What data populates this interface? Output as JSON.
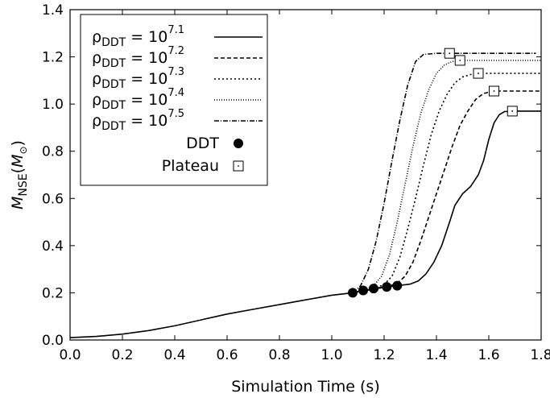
{
  "chart_data": {
    "type": "line",
    "xlabel": "Simulation Time (s)",
    "ylabel_main": "M",
    "ylabel_sub": "NSE",
    "ylabel_unit_open": "(",
    "ylabel_unit": "M",
    "ylabel_unit_close": ")",
    "xlim": [
      0.0,
      1.8
    ],
    "ylim": [
      0.0,
      1.4
    ],
    "xticks": [
      "0.0",
      "0.2",
      "0.4",
      "0.6",
      "0.8",
      "1.0",
      "1.2",
      "1.4",
      "1.6",
      "1.8"
    ],
    "yticks": [
      "0.0",
      "0.2",
      "0.4",
      "0.6",
      "0.8",
      "1.0",
      "1.2",
      "1.4"
    ],
    "grid": false,
    "legend_position": "top-left",
    "common_curve": [
      [
        0.0,
        0.01
      ],
      [
        0.1,
        0.015
      ],
      [
        0.2,
        0.025
      ],
      [
        0.3,
        0.04
      ],
      [
        0.4,
        0.06
      ],
      [
        0.5,
        0.085
      ],
      [
        0.6,
        0.11
      ],
      [
        0.7,
        0.13
      ],
      [
        0.8,
        0.15
      ],
      [
        0.9,
        0.17
      ],
      [
        1.0,
        0.19
      ],
      [
        1.08,
        0.2
      ]
    ],
    "series": [
      {
        "name_base": "ρ",
        "name_sub": "DDT",
        "name_eq": " = 10",
        "name_exp": "7.1",
        "dash": "",
        "points": [
          [
            1.08,
            0.2
          ],
          [
            1.12,
            0.21
          ],
          [
            1.16,
            0.218
          ],
          [
            1.2,
            0.225
          ],
          [
            1.25,
            0.23
          ],
          [
            1.3,
            0.237
          ],
          [
            1.33,
            0.25
          ],
          [
            1.36,
            0.28
          ],
          [
            1.39,
            0.33
          ],
          [
            1.42,
            0.4
          ],
          [
            1.45,
            0.5
          ],
          [
            1.47,
            0.57
          ],
          [
            1.5,
            0.62
          ],
          [
            1.53,
            0.65
          ],
          [
            1.56,
            0.7
          ],
          [
            1.58,
            0.76
          ],
          [
            1.6,
            0.85
          ],
          [
            1.62,
            0.92
          ],
          [
            1.64,
            0.955
          ],
          [
            1.66,
            0.968
          ],
          [
            1.69,
            0.97
          ],
          [
            1.8,
            0.97
          ]
        ]
      },
      {
        "name_base": "ρ",
        "name_sub": "DDT",
        "name_eq": " = 10",
        "name_exp": "7.2",
        "dash": "5,3",
        "points": [
          [
            1.08,
            0.2
          ],
          [
            1.21,
            0.225
          ],
          [
            1.25,
            0.24
          ],
          [
            1.28,
            0.27
          ],
          [
            1.31,
            0.33
          ],
          [
            1.34,
            0.42
          ],
          [
            1.37,
            0.52
          ],
          [
            1.4,
            0.62
          ],
          [
            1.43,
            0.72
          ],
          [
            1.46,
            0.82
          ],
          [
            1.49,
            0.91
          ],
          [
            1.52,
            0.97
          ],
          [
            1.55,
            1.02
          ],
          [
            1.58,
            1.045
          ],
          [
            1.62,
            1.055
          ],
          [
            1.8,
            1.055
          ]
        ]
      },
      {
        "name_base": "ρ",
        "name_sub": "DDT",
        "name_eq": " = 10",
        "name_exp": "7.3",
        "dash": "2,3",
        "points": [
          [
            1.08,
            0.2
          ],
          [
            1.16,
            0.218
          ],
          [
            1.2,
            0.235
          ],
          [
            1.23,
            0.27
          ],
          [
            1.26,
            0.35
          ],
          [
            1.29,
            0.47
          ],
          [
            1.32,
            0.6
          ],
          [
            1.35,
            0.74
          ],
          [
            1.38,
            0.87
          ],
          [
            1.41,
            0.97
          ],
          [
            1.44,
            1.04
          ],
          [
            1.47,
            1.09
          ],
          [
            1.5,
            1.115
          ],
          [
            1.53,
            1.125
          ],
          [
            1.56,
            1.13
          ],
          [
            1.8,
            1.13
          ]
        ]
      },
      {
        "name_base": "ρ",
        "name_sub": "DDT",
        "name_eq": " = 10",
        "name_exp": "7.4",
        "dash": "1,2",
        "points": [
          [
            1.08,
            0.2
          ],
          [
            1.12,
            0.21
          ],
          [
            1.16,
            0.23
          ],
          [
            1.19,
            0.27
          ],
          [
            1.22,
            0.36
          ],
          [
            1.25,
            0.5
          ],
          [
            1.28,
            0.66
          ],
          [
            1.31,
            0.82
          ],
          [
            1.34,
            0.96
          ],
          [
            1.37,
            1.06
          ],
          [
            1.4,
            1.13
          ],
          [
            1.43,
            1.165
          ],
          [
            1.46,
            1.18
          ],
          [
            1.49,
            1.185
          ],
          [
            1.8,
            1.185
          ]
        ]
      },
      {
        "name_base": "ρ",
        "name_sub": "DDT",
        "name_eq": " = 10",
        "name_exp": "7.5",
        "dash": "6,2,1,2",
        "points": [
          [
            1.08,
            0.2
          ],
          [
            1.11,
            0.23
          ],
          [
            1.14,
            0.3
          ],
          [
            1.17,
            0.42
          ],
          [
            1.2,
            0.58
          ],
          [
            1.23,
            0.76
          ],
          [
            1.26,
            0.93
          ],
          [
            1.29,
            1.08
          ],
          [
            1.32,
            1.18
          ],
          [
            1.35,
            1.21
          ],
          [
            1.4,
            1.215
          ],
          [
            1.45,
            1.215
          ],
          [
            1.78,
            1.215
          ]
        ]
      }
    ],
    "ddt_label": "DDT",
    "plateau_label": "Plateau",
    "ddt_points": [
      [
        1.08,
        0.2
      ],
      [
        1.12,
        0.21
      ],
      [
        1.16,
        0.218
      ],
      [
        1.21,
        0.225
      ],
      [
        1.25,
        0.23
      ]
    ],
    "plateau_points": [
      [
        1.45,
        1.215
      ],
      [
        1.49,
        1.185
      ],
      [
        1.56,
        1.13
      ],
      [
        1.62,
        1.055
      ],
      [
        1.69,
        0.97
      ]
    ]
  }
}
